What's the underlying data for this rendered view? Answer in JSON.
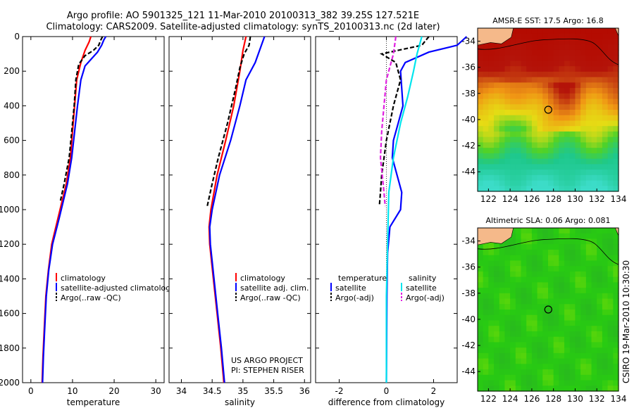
{
  "title_line1": "Argo profile: AO 5901325_121 11-Mar-2010 20100313_382 39.25S 127.521E",
  "title_line2": "Climatology: CARS2009. Satellite-adjusted climatology: synTS_20100313.nc (2d later)",
  "credit": [
    "US ARGO PROJECT",
    "PI: STEPHEN RISER"
  ],
  "side_text": "CSIRO 19-Mar-2010 10:30:30",
  "colors": {
    "climatology": "#ff0000",
    "satellite": "#0000ff",
    "argo": "#000000",
    "salinity_satellite": "#00e5ee",
    "salinity_argo": "#e020e0",
    "land": "#f5b98a"
  },
  "chart_data": [
    {
      "type": "line",
      "xlabel": "temperature",
      "ylabel": "",
      "xlim": [
        -2,
        32
      ],
      "ylim": [
        2000,
        0
      ],
      "xticks": [
        0,
        10,
        20,
        30
      ],
      "yticks": [
        0,
        200,
        400,
        600,
        800,
        1000,
        1200,
        1400,
        1600,
        1800,
        2000
      ],
      "legend": {
        "position": "lower-right",
        "entries": [
          "climatology",
          "satellite-adjusted climatology",
          "Argo(..raw -QC)"
        ]
      },
      "series": [
        {
          "name": "climatology",
          "style": "solid",
          "color": "climatology",
          "points": [
            [
              14.4,
              0
            ],
            [
              14.0,
              30
            ],
            [
              13.0,
              80
            ],
            [
              12.0,
              150
            ],
            [
              11.0,
              250
            ],
            [
              10.5,
              400
            ],
            [
              10.0,
              550
            ],
            [
              9.5,
              700
            ],
            [
              8.5,
              850
            ],
            [
              7.5,
              950
            ],
            [
              6.5,
              1050
            ],
            [
              5.0,
              1200
            ],
            [
              4.2,
              1350
            ],
            [
              3.6,
              1500
            ],
            [
              3.2,
              1700
            ],
            [
              2.9,
              1850
            ],
            [
              2.7,
              2000
            ]
          ]
        },
        {
          "name": "satellite-adjusted climatology",
          "style": "solid",
          "color": "satellite",
          "points": [
            [
              18.0,
              0
            ],
            [
              17.5,
              20
            ],
            [
              17.0,
              50
            ],
            [
              16.0,
              90
            ],
            [
              14.5,
              130
            ],
            [
              13.0,
              170
            ],
            [
              12.0,
              250
            ],
            [
              11.2,
              400
            ],
            [
              10.5,
              550
            ],
            [
              9.8,
              700
            ],
            [
              8.8,
              850
            ],
            [
              7.8,
              950
            ],
            [
              6.8,
              1050
            ],
            [
              5.2,
              1200
            ],
            [
              4.3,
              1350
            ],
            [
              3.7,
              1500
            ],
            [
              3.3,
              1700
            ],
            [
              3.0,
              1850
            ],
            [
              2.8,
              2000
            ]
          ]
        },
        {
          "name": "Argo(..raw -QC)",
          "style": "dashed",
          "color": "argo",
          "points": [
            [
              17.2,
              0
            ],
            [
              16.8,
              20
            ],
            [
              16.3,
              50
            ],
            [
              15.0,
              80
            ],
            [
              13.0,
              110
            ],
            [
              11.5,
              160
            ],
            [
              10.8,
              250
            ],
            [
              10.4,
              400
            ],
            [
              9.8,
              550
            ],
            [
              9.2,
              700
            ],
            [
              8.0,
              850
            ],
            [
              7.0,
              960
            ]
          ]
        }
      ]
    },
    {
      "type": "line",
      "xlabel": "salinity",
      "ylabel": "",
      "xlim": [
        33.8,
        36.1
      ],
      "ylim": [
        2000,
        0
      ],
      "xticks": [
        34,
        34.5,
        35,
        35.5,
        36
      ],
      "yticks": [
        0,
        200,
        400,
        600,
        800,
        1000,
        1200,
        1400,
        1600,
        1800,
        2000
      ],
      "legend": {
        "position": "lower-right",
        "entries": [
          "climatology",
          "satellite adj. clim.",
          "Argo(..raw -QC)"
        ]
      },
      "series": [
        {
          "name": "climatology",
          "style": "solid",
          "color": "climatology",
          "points": [
            [
              35.05,
              0
            ],
            [
              35.0,
              80
            ],
            [
              34.95,
              200
            ],
            [
              34.85,
              400
            ],
            [
              34.72,
              600
            ],
            [
              34.58,
              800
            ],
            [
              34.48,
              1000
            ],
            [
              34.45,
              1100
            ],
            [
              34.46,
              1200
            ],
            [
              34.52,
              1400
            ],
            [
              34.58,
              1600
            ],
            [
              34.64,
              1800
            ],
            [
              34.69,
              2000
            ]
          ]
        },
        {
          "name": "satellite adj. clim.",
          "style": "solid",
          "color": "satellite",
          "points": [
            [
              35.35,
              0
            ],
            [
              35.3,
              50
            ],
            [
              35.2,
              150
            ],
            [
              35.05,
              250
            ],
            [
              34.95,
              400
            ],
            [
              34.8,
              600
            ],
            [
              34.62,
              800
            ],
            [
              34.5,
              1000
            ],
            [
              34.46,
              1100
            ],
            [
              34.47,
              1200
            ],
            [
              34.53,
              1400
            ],
            [
              34.59,
              1600
            ],
            [
              34.65,
              1800
            ],
            [
              34.7,
              2000
            ]
          ]
        },
        {
          "name": "Argo(..raw -QC)",
          "style": "dashed",
          "color": "argo",
          "points": [
            [
              35.12,
              0
            ],
            [
              35.1,
              50
            ],
            [
              35.02,
              100
            ],
            [
              34.95,
              180
            ],
            [
              34.88,
              300
            ],
            [
              34.75,
              500
            ],
            [
              34.6,
              700
            ],
            [
              34.5,
              850
            ],
            [
              34.42,
              980
            ]
          ]
        }
      ]
    },
    {
      "type": "line",
      "xlabel": "difference from climatology",
      "ylabel": "",
      "xlim": [
        -3,
        3
      ],
      "ylim": [
        2000,
        0
      ],
      "xticks": [
        -2,
        0,
        2
      ],
      "yticks": [
        0,
        200,
        400,
        600,
        800,
        1000,
        1200,
        1400,
        1600,
        1800,
        2000
      ],
      "legend": {
        "position": "lower-right",
        "entries": [
          "temperature",
          "satellite",
          "Argo(-adj)",
          "salinity",
          "satellite",
          "Argo(-adj)"
        ]
      },
      "series": [
        {
          "name": "temperature satellite",
          "style": "solid",
          "color": "satellite",
          "points": [
            [
              3.4,
              0
            ],
            [
              3.0,
              50
            ],
            [
              1.8,
              90
            ],
            [
              0.8,
              150
            ],
            [
              0.6,
              200
            ],
            [
              0.65,
              300
            ],
            [
              0.7,
              400
            ],
            [
              0.5,
              500
            ],
            [
              0.3,
              600
            ],
            [
              0.25,
              700
            ],
            [
              0.45,
              800
            ],
            [
              0.65,
              900
            ],
            [
              0.6,
              1000
            ],
            [
              0.15,
              1100
            ],
            [
              0.05,
              1250
            ],
            [
              0.02,
              1500
            ],
            [
              0.0,
              2000
            ]
          ]
        },
        {
          "name": "temperature Argo(-adj)",
          "style": "dashed",
          "color": "argo",
          "points": [
            [
              1.8,
              0
            ],
            [
              1.5,
              50
            ],
            [
              -0.2,
              100
            ],
            [
              0.4,
              150
            ],
            [
              0.6,
              250
            ],
            [
              0.3,
              400
            ],
            [
              0.0,
              600
            ],
            [
              -0.2,
              800
            ],
            [
              -0.25,
              900
            ],
            [
              -0.3,
              980
            ]
          ]
        },
        {
          "name": "salinity satellite",
          "style": "solid",
          "color": "salinity_satellite",
          "points": [
            [
              1.5,
              0
            ],
            [
              1.4,
              50
            ],
            [
              1.3,
              100
            ],
            [
              1.15,
              200
            ],
            [
              0.9,
              350
            ],
            [
              0.6,
              500
            ],
            [
              0.3,
              700
            ],
            [
              0.1,
              900
            ],
            [
              0.05,
              1200
            ],
            [
              0.0,
              1500
            ],
            [
              0.0,
              2000
            ]
          ]
        },
        {
          "name": "salinity Argo(-adj)",
          "style": "dashed",
          "color": "salinity_argo",
          "points": [
            [
              0.4,
              0
            ],
            [
              0.3,
              100
            ],
            [
              0.0,
              250
            ],
            [
              -0.1,
              400
            ],
            [
              -0.2,
              550
            ],
            [
              -0.25,
              700
            ],
            [
              -0.1,
              900
            ],
            [
              -0.05,
              980
            ]
          ]
        }
      ]
    },
    {
      "type": "heatmap",
      "title": "AMSR-E SST: 17.5 Argo: 16.8",
      "xlim": [
        121,
        134
      ],
      "ylim": [
        -45.5,
        -33
      ],
      "xticks": [
        122,
        124,
        126,
        128,
        130,
        132,
        134
      ],
      "yticks": [
        -34,
        -36,
        -38,
        -40,
        -42,
        -44
      ],
      "marker": {
        "lon": 127.52,
        "lat": -39.25
      }
    },
    {
      "type": "heatmap",
      "title": "Altimetric SLA: 0.06 Argo: 0.081",
      "xlim": [
        121,
        134
      ],
      "ylim": [
        -45.5,
        -33
      ],
      "xticks": [
        122,
        124,
        126,
        128,
        130,
        132,
        134
      ],
      "yticks": [
        -34,
        -36,
        -38,
        -40,
        -42,
        -44
      ],
      "marker": {
        "lon": 127.52,
        "lat": -39.25
      }
    }
  ]
}
